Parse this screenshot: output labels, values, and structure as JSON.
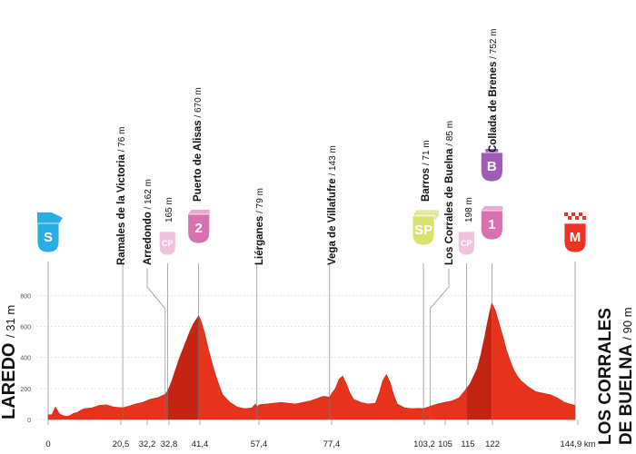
{
  "chart_data": {
    "type": "area",
    "xunit": "km",
    "ylim": [
      0,
      850
    ],
    "yticks": [
      0,
      200,
      400,
      600,
      800
    ],
    "xticks": [
      "0",
      "20,5",
      "32,2",
      "32,8",
      "41,4",
      "57,4",
      "77,4",
      "103,2",
      "105",
      "115",
      "122",
      "144,9 km"
    ],
    "start": {
      "name": "LAREDO",
      "alt": "31 m",
      "badge": "S",
      "badge_color": "#29aee3"
    },
    "finish": {
      "name_line1": "LOS CORRALES",
      "name_line2": "DE BUELNA",
      "alt": "90 m",
      "badge": "M",
      "badge_color": "#ee3224"
    },
    "waypoints": [
      {
        "km": 20.5,
        "name": "Ramales de la Victoria",
        "alt": "76 m"
      },
      {
        "km": 32.2,
        "name": "Arredondo",
        "alt": "162 m"
      },
      {
        "km": 32.8,
        "name": "",
        "alt": "165 m",
        "badge": "CP",
        "badge_color": "#f2c2dc"
      },
      {
        "km": 41.4,
        "name": "Puerto de Alisas",
        "alt": "670 m",
        "badge": "2",
        "badge_color": "#d871b1"
      },
      {
        "km": 57.4,
        "name": "Liérganes",
        "alt": "79 m"
      },
      {
        "km": 77.4,
        "name": "Vega de Villafufre",
        "alt": "143 m"
      },
      {
        "km": 103.2,
        "name": "Barros",
        "alt": "71 m",
        "badge": "SP",
        "badge_color": "#d9e36b"
      },
      {
        "km": 105,
        "name": "Los Corrales de Buelna",
        "alt": "85 m"
      },
      {
        "km": 115,
        "name": "",
        "alt": "198 m",
        "badge": "CP",
        "badge_color": "#f2c2dc"
      },
      {
        "km": 122,
        "name": "Collada de Brenes",
        "alt": "752 m",
        "badge": "1",
        "badge_color": "#d871b1",
        "bonus_badge": "B",
        "bonus_color": "#a05bb5"
      }
    ],
    "profile": {
      "x": [
        0,
        1,
        2,
        3,
        4,
        5,
        6,
        7,
        8,
        9,
        10,
        12,
        14,
        16,
        18,
        20.5,
        22,
        24,
        26,
        28,
        30,
        32.2,
        33,
        34,
        35,
        36,
        37,
        38,
        39,
        40,
        41.4,
        42,
        43,
        44,
        45,
        46,
        47,
        48,
        50,
        52,
        54,
        56,
        57,
        57.4,
        58,
        60,
        62,
        64,
        66,
        68,
        70,
        72,
        74,
        75,
        76,
        77.4,
        78,
        79,
        80,
        81,
        82,
        83,
        84,
        86,
        88,
        90,
        91,
        92,
        93,
        94,
        95,
        96,
        98,
        100,
        102,
        103.2,
        105,
        107,
        109,
        111,
        113,
        115,
        116,
        117,
        118,
        119,
        120,
        121,
        122,
        123,
        124,
        125,
        126,
        127,
        128,
        129,
        130,
        131,
        132,
        134,
        136,
        138,
        140,
        142,
        144.9
      ],
      "y": [
        31,
        30,
        80,
        40,
        25,
        20,
        25,
        40,
        45,
        60,
        70,
        75,
        90,
        95,
        80,
        76,
        85,
        100,
        110,
        130,
        140,
        162,
        190,
        250,
        320,
        390,
        450,
        510,
        570,
        620,
        670,
        640,
        560,
        460,
        370,
        290,
        220,
        160,
        110,
        80,
        70,
        75,
        100,
        79,
        95,
        100,
        105,
        110,
        105,
        100,
        110,
        120,
        135,
        145,
        150,
        143,
        170,
        200,
        260,
        280,
        230,
        170,
        130,
        110,
        100,
        105,
        170,
        250,
        290,
        240,
        160,
        100,
        75,
        70,
        72,
        71,
        85,
        100,
        110,
        120,
        140,
        198,
        230,
        280,
        330,
        420,
        530,
        650,
        752,
        700,
        620,
        540,
        450,
        380,
        320,
        280,
        250,
        230,
        210,
        180,
        170,
        160,
        140,
        110,
        90
      ]
    }
  }
}
